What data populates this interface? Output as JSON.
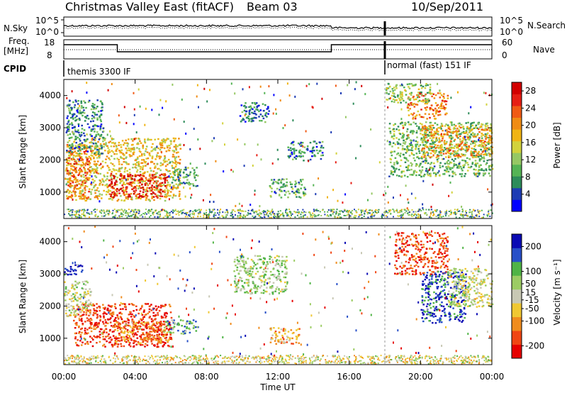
{
  "header": {
    "title": "Christmas Valley East (fitACF)",
    "beam": "Beam 03",
    "date": "10/Sep/2011"
  },
  "status_panel": {
    "left_top_label": "N.Sky",
    "left_mid_label_1": "Freq.",
    "left_mid_label_2": "[MHz]",
    "cpid_label": "CPID",
    "right_top_label": "N.Search",
    "right_mid_label": "Nave",
    "noise_ticks_left": [
      "10^5",
      "10^0"
    ],
    "noise_ticks_right": [
      "10^5",
      "10^0"
    ],
    "freq_ticks": [
      "18",
      "8"
    ],
    "nave_ticks": [
      "60",
      "0"
    ],
    "cpid_segments": [
      "themis 3300 IF",
      "normal (fast) 151 IF"
    ]
  },
  "x_axis": {
    "label": "Time UT",
    "ticks": [
      "00:00",
      "04:00",
      "08:00",
      "12:00",
      "16:00",
      "20:00",
      "00:00"
    ]
  },
  "chart_data": [
    {
      "type": "heatmap",
      "name": "power-panel",
      "xlabel": "Time UT",
      "ylabel": "Slant Range [km]",
      "xlim_hours": [
        0,
        24
      ],
      "ylim": [
        180,
        4500
      ],
      "yticks": [
        "1000",
        "2000",
        "3000",
        "4000"
      ],
      "colorbar": {
        "label": "Power [dB]",
        "ticks": [
          "28",
          "24",
          "20",
          "16",
          "12",
          "8",
          "4"
        ],
        "tick_values": [
          28,
          24,
          20,
          16,
          12,
          8,
          4
        ],
        "range": [
          0,
          30
        ],
        "colors": [
          "#0000ff",
          "#1e3cb4",
          "#2d8c5a",
          "#55b455",
          "#96c864",
          "#d2d23c",
          "#f0b414",
          "#f08c14",
          "#f05a14",
          "#e61e14",
          "#d20000"
        ]
      },
      "regions": [
        {
          "t": [
            0.1,
            6.5
          ],
          "r": [
            750,
            2700
          ],
          "level": 0.55
        },
        {
          "t": [
            2.5,
            5.8
          ],
          "r": [
            850,
            1600
          ],
          "level": 0.9
        },
        {
          "t": [
            0.1,
            1.5
          ],
          "r": [
            800,
            2500
          ],
          "level": 0.75
        },
        {
          "t": [
            0.1,
            2.2
          ],
          "r": [
            2200,
            3900
          ],
          "level": 0.25
        },
        {
          "t": [
            6.0,
            7.5
          ],
          "r": [
            1200,
            1800
          ],
          "level": 0.3
        },
        {
          "t": [
            9.8,
            11.5
          ],
          "r": [
            3200,
            3800
          ],
          "level": 0.2
        },
        {
          "t": [
            11.5,
            13.5
          ],
          "r": [
            850,
            1450
          ],
          "level": 0.3
        },
        {
          "t": [
            12.5,
            14.5
          ],
          "r": [
            2000,
            2600
          ],
          "level": 0.2
        },
        {
          "t": [
            18.2,
            24.0
          ],
          "r": [
            1500,
            3200
          ],
          "level": 0.35
        },
        {
          "t": [
            20.0,
            24.0
          ],
          "r": [
            2100,
            3100
          ],
          "level": 0.65
        },
        {
          "t": [
            19.2,
            21.5
          ],
          "r": [
            3300,
            4100
          ],
          "level": 0.7
        },
        {
          "t": [
            18.0,
            20.5
          ],
          "r": [
            3800,
            4400
          ],
          "level": 0.4
        }
      ]
    },
    {
      "type": "heatmap",
      "name": "velocity-panel",
      "xlabel": "Time UT",
      "ylabel": "Slant Range [km]",
      "xlim_hours": [
        0,
        24
      ],
      "ylim": [
        180,
        4500
      ],
      "yticks": [
        "1000",
        "2000",
        "3000",
        "4000"
      ],
      "colorbar": {
        "label": "Velocity [m s⁻¹]",
        "ticks": [
          "200",
          "100",
          "50",
          "15",
          "-15",
          "-50",
          "-100",
          "-200"
        ],
        "tick_values": [
          200,
          100,
          50,
          15,
          -15,
          -50,
          -100,
          -200
        ],
        "range": [
          -250,
          250
        ],
        "colors": [
          "#e60000",
          "#f04614",
          "#f08c1e",
          "#f0c832",
          "#c8c8b4",
          "#9ccc64",
          "#50b446",
          "#2850c8",
          "#0a0ab4"
        ]
      },
      "regions": [
        {
          "t": [
            0.5,
            6.0
          ],
          "r": [
            750,
            2100
          ],
          "level": 0.12
        },
        {
          "t": [
            2.8,
            5.8
          ],
          "r": [
            850,
            1550
          ],
          "level": 0.25
        },
        {
          "t": [
            0.0,
            1.5
          ],
          "r": [
            1700,
            2800
          ],
          "level": 0.55
        },
        {
          "t": [
            0.0,
            1.0
          ],
          "r": [
            3000,
            3300
          ],
          "level": 0.95
        },
        {
          "t": [
            5.5,
            7.5
          ],
          "r": [
            1150,
            1600
          ],
          "level": 0.7
        },
        {
          "t": [
            9.5,
            12.5
          ],
          "r": [
            2400,
            3600
          ],
          "level": 0.6
        },
        {
          "t": [
            11.5,
            13.2
          ],
          "r": [
            850,
            1350
          ],
          "level": 0.35
        },
        {
          "t": [
            18.5,
            21.5
          ],
          "r": [
            3000,
            4300
          ],
          "level": 0.15
        },
        {
          "t": [
            20.0,
            22.5
          ],
          "r": [
            1500,
            3100
          ],
          "level": 0.85
        },
        {
          "t": [
            21.5,
            24.0
          ],
          "r": [
            2000,
            3200
          ],
          "level": 0.5
        }
      ]
    }
  ]
}
